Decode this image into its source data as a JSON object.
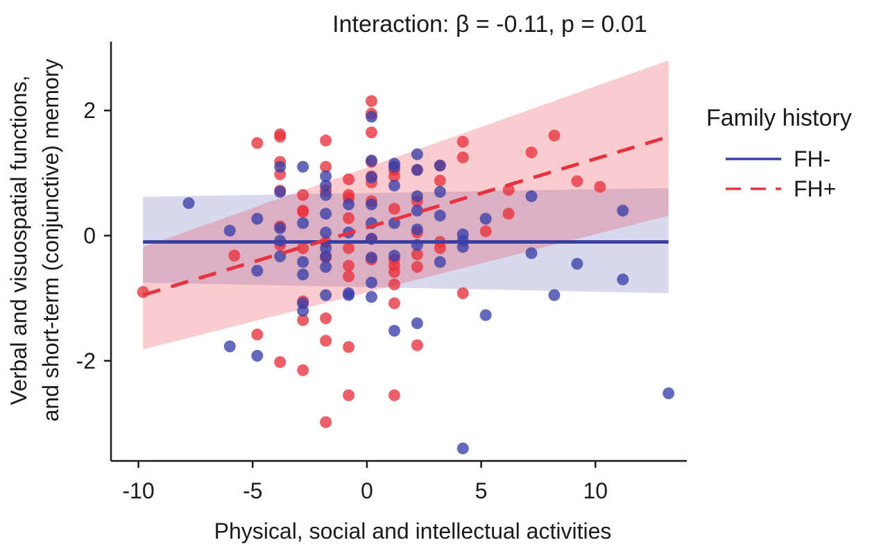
{
  "chart_data": {
    "type": "scatter",
    "annotation": "Interaction: β = -0.11, p = 0.01",
    "xlabel": "Physical, social and intellectual activities",
    "ylabel_lines": [
      "Verbal and visuospatial functions,",
      "and short-term (conjunctive) memory"
    ],
    "xlim": [
      -11.2,
      14.0
    ],
    "ylim": [
      -3.6,
      3.1
    ],
    "xticks": [
      -10,
      -5,
      0,
      5,
      10
    ],
    "yticks": [
      -2,
      0,
      2
    ],
    "xtick_labels": [
      "-10",
      "-5",
      "0",
      "5",
      "10"
    ],
    "ytick_labels": [
      "-2",
      "0",
      "2"
    ],
    "grid": false,
    "legend": {
      "title": "Family history",
      "position": "right",
      "items": [
        {
          "label": "FH-",
          "series": 0
        },
        {
          "label": "FH+",
          "series": 1
        }
      ]
    },
    "series": [
      {
        "name": "FH-",
        "color": "#3a3fa8",
        "line_style": "solid",
        "fit": {
          "x": [
            -9.8,
            13.2
          ],
          "y": [
            -0.1,
            -0.1
          ]
        },
        "band": {
          "x": [
            -9.8,
            13.2
          ],
          "lower": [
            -0.75,
            -0.92
          ],
          "upper": [
            0.62,
            0.76
          ]
        },
        "points": [
          [
            -7.8,
            0.52
          ],
          [
            -6.0,
            0.08
          ],
          [
            -6.0,
            -1.77
          ],
          [
            -4.8,
            0.27
          ],
          [
            -4.8,
            -0.56
          ],
          [
            -4.8,
            -1.92
          ],
          [
            -3.8,
            1.1
          ],
          [
            -3.8,
            0.7
          ],
          [
            -3.8,
            0.12
          ],
          [
            -3.8,
            -0.08
          ],
          [
            -3.8,
            -0.33
          ],
          [
            -2.8,
            1.1
          ],
          [
            -2.8,
            0.2
          ],
          [
            -2.8,
            -0.42
          ],
          [
            -2.8,
            -0.62
          ],
          [
            -2.8,
            -1.08
          ],
          [
            -2.8,
            -1.2
          ],
          [
            -1.8,
            0.95
          ],
          [
            -1.8,
            0.8
          ],
          [
            -1.8,
            0.65
          ],
          [
            -1.8,
            0.35
          ],
          [
            -1.8,
            0.05
          ],
          [
            -1.8,
            -0.2
          ],
          [
            -1.8,
            -0.33
          ],
          [
            -1.8,
            -0.5
          ],
          [
            -1.8,
            -0.95
          ],
          [
            -0.8,
            0.5
          ],
          [
            -0.8,
            0.05
          ],
          [
            -0.8,
            -0.92
          ],
          [
            -0.8,
            -0.95
          ],
          [
            0.2,
            1.9
          ],
          [
            0.2,
            1.2
          ],
          [
            0.2,
            0.93
          ],
          [
            0.2,
            0.5
          ],
          [
            0.2,
            0.2
          ],
          [
            0.2,
            -0.05
          ],
          [
            0.2,
            -0.35
          ],
          [
            0.2,
            -0.75
          ],
          [
            0.2,
            -0.98
          ],
          [
            1.2,
            1.15
          ],
          [
            1.2,
            1.1
          ],
          [
            1.2,
            0.8
          ],
          [
            1.2,
            0.2
          ],
          [
            1.2,
            -0.32
          ],
          [
            1.2,
            -1.52
          ],
          [
            2.2,
            1.3
          ],
          [
            2.2,
            1.05
          ],
          [
            2.2,
            0.63
          ],
          [
            2.2,
            0.4
          ],
          [
            2.2,
            0.1
          ],
          [
            2.2,
            -0.15
          ],
          [
            2.2,
            -1.4
          ],
          [
            3.2,
            1.12
          ],
          [
            3.2,
            0.7
          ],
          [
            3.2,
            0.32
          ],
          [
            3.2,
            -0.42
          ],
          [
            4.2,
            0.02
          ],
          [
            4.2,
            -0.08
          ],
          [
            4.2,
            -0.18
          ],
          [
            4.2,
            -3.4
          ],
          [
            5.2,
            0.27
          ],
          [
            5.2,
            -1.27
          ],
          [
            7.2,
            0.63
          ],
          [
            7.2,
            -0.28
          ],
          [
            8.2,
            -0.95
          ],
          [
            9.2,
            -0.45
          ],
          [
            11.2,
            0.4
          ],
          [
            11.2,
            -0.7
          ],
          [
            13.2,
            -2.52
          ]
        ]
      },
      {
        "name": "FH+",
        "color": "#e8323e",
        "line_style": "dashed",
        "fit": {
          "x": [
            -9.8,
            13.2
          ],
          "y": [
            -0.95,
            1.58
          ]
        },
        "band": {
          "x": [
            -9.8,
            13.2
          ],
          "lower": [
            -1.82,
            0.32
          ],
          "upper": [
            -0.18,
            2.8
          ]
        },
        "points": [
          [
            -9.8,
            -0.9
          ],
          [
            -5.8,
            -0.32
          ],
          [
            -4.8,
            1.48
          ],
          [
            -4.8,
            -1.58
          ],
          [
            -3.8,
            1.62
          ],
          [
            -3.8,
            1.58
          ],
          [
            -3.8,
            1.18
          ],
          [
            -3.8,
            0.98
          ],
          [
            -3.8,
            0.72
          ],
          [
            -3.8,
            0.15
          ],
          [
            -3.8,
            -0.15
          ],
          [
            -3.8,
            -2.02
          ],
          [
            -2.8,
            0.65
          ],
          [
            -2.8,
            0.4
          ],
          [
            -2.8,
            0.38
          ],
          [
            -2.8,
            -0.2
          ],
          [
            -2.8,
            -1.05
          ],
          [
            -2.8,
            -1.35
          ],
          [
            -2.8,
            -2.15
          ],
          [
            -1.8,
            1.52
          ],
          [
            -1.8,
            1.1
          ],
          [
            -1.8,
            0.72
          ],
          [
            -1.8,
            -0.1
          ],
          [
            -1.8,
            -0.35
          ],
          [
            -1.8,
            -1.32
          ],
          [
            -1.8,
            -1.68
          ],
          [
            -1.8,
            -2.98
          ],
          [
            -0.8,
            0.9
          ],
          [
            -0.8,
            0.65
          ],
          [
            -0.8,
            0.6
          ],
          [
            -0.8,
            0.28
          ],
          [
            -0.8,
            -0.2
          ],
          [
            -0.8,
            -0.48
          ],
          [
            -0.8,
            -0.65
          ],
          [
            -0.8,
            -1.78
          ],
          [
            -0.8,
            -2.55
          ],
          [
            0.2,
            2.15
          ],
          [
            0.2,
            1.95
          ],
          [
            0.2,
            1.65
          ],
          [
            0.2,
            1.18
          ],
          [
            0.2,
            0.95
          ],
          [
            0.2,
            0.85
          ],
          [
            0.2,
            0.55
          ],
          [
            0.2,
            -0.05
          ],
          [
            0.2,
            -0.38
          ],
          [
            1.2,
            1.05
          ],
          [
            1.2,
            0.95
          ],
          [
            1.2,
            0.43
          ],
          [
            1.2,
            -0.38
          ],
          [
            1.2,
            -0.48
          ],
          [
            1.2,
            -0.58
          ],
          [
            1.2,
            -0.78
          ],
          [
            1.2,
            -1.08
          ],
          [
            1.2,
            -2.55
          ],
          [
            2.2,
            1.05
          ],
          [
            2.2,
            0.55
          ],
          [
            2.2,
            0.05
          ],
          [
            2.2,
            -0.3
          ],
          [
            2.2,
            -0.5
          ],
          [
            2.2,
            -1.75
          ],
          [
            3.2,
            1.12
          ],
          [
            3.2,
            0.88
          ],
          [
            3.2,
            -0.1
          ],
          [
            3.2,
            -0.2
          ],
          [
            4.2,
            1.5
          ],
          [
            4.2,
            1.25
          ],
          [
            4.2,
            -0.92
          ],
          [
            5.2,
            0.07
          ],
          [
            6.2,
            0.73
          ],
          [
            6.2,
            0.35
          ],
          [
            7.2,
            1.33
          ],
          [
            8.2,
            1.6
          ],
          [
            9.2,
            0.87
          ],
          [
            10.2,
            0.78
          ]
        ]
      }
    ]
  }
}
